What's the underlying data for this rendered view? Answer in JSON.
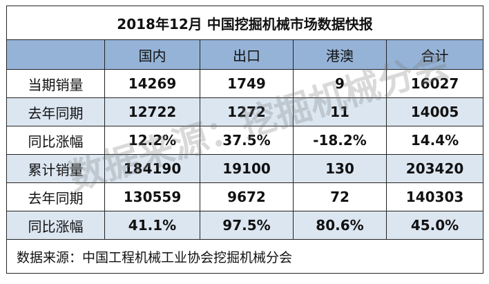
{
  "title": "2018年12月  中国挖掘机械市场数据快报",
  "table": {
    "header": [
      "国内",
      "出口",
      "港澳",
      "合计"
    ],
    "rows": [
      [
        "当期销量",
        "14269",
        "1749",
        "9",
        "16027"
      ],
      [
        "去年同期",
        "12722",
        "1272",
        "11",
        "14005"
      ],
      [
        "同比涨幅",
        "12.2%",
        "37.5%",
        "-18.2%",
        "14.4%"
      ],
      [
        "累计销量",
        "184190",
        "19100",
        "130",
        "203420"
      ],
      [
        "去年同期",
        "130559",
        "9672",
        "72",
        "140303"
      ],
      [
        "同比涨幅",
        "41.1%",
        "97.5%",
        "80.6%",
        "45.0%"
      ]
    ]
  },
  "source": "数据来源：中国工程机械工业协会挖掘机械分会",
  "watermark": "数据来源：挖掘机械分会"
}
